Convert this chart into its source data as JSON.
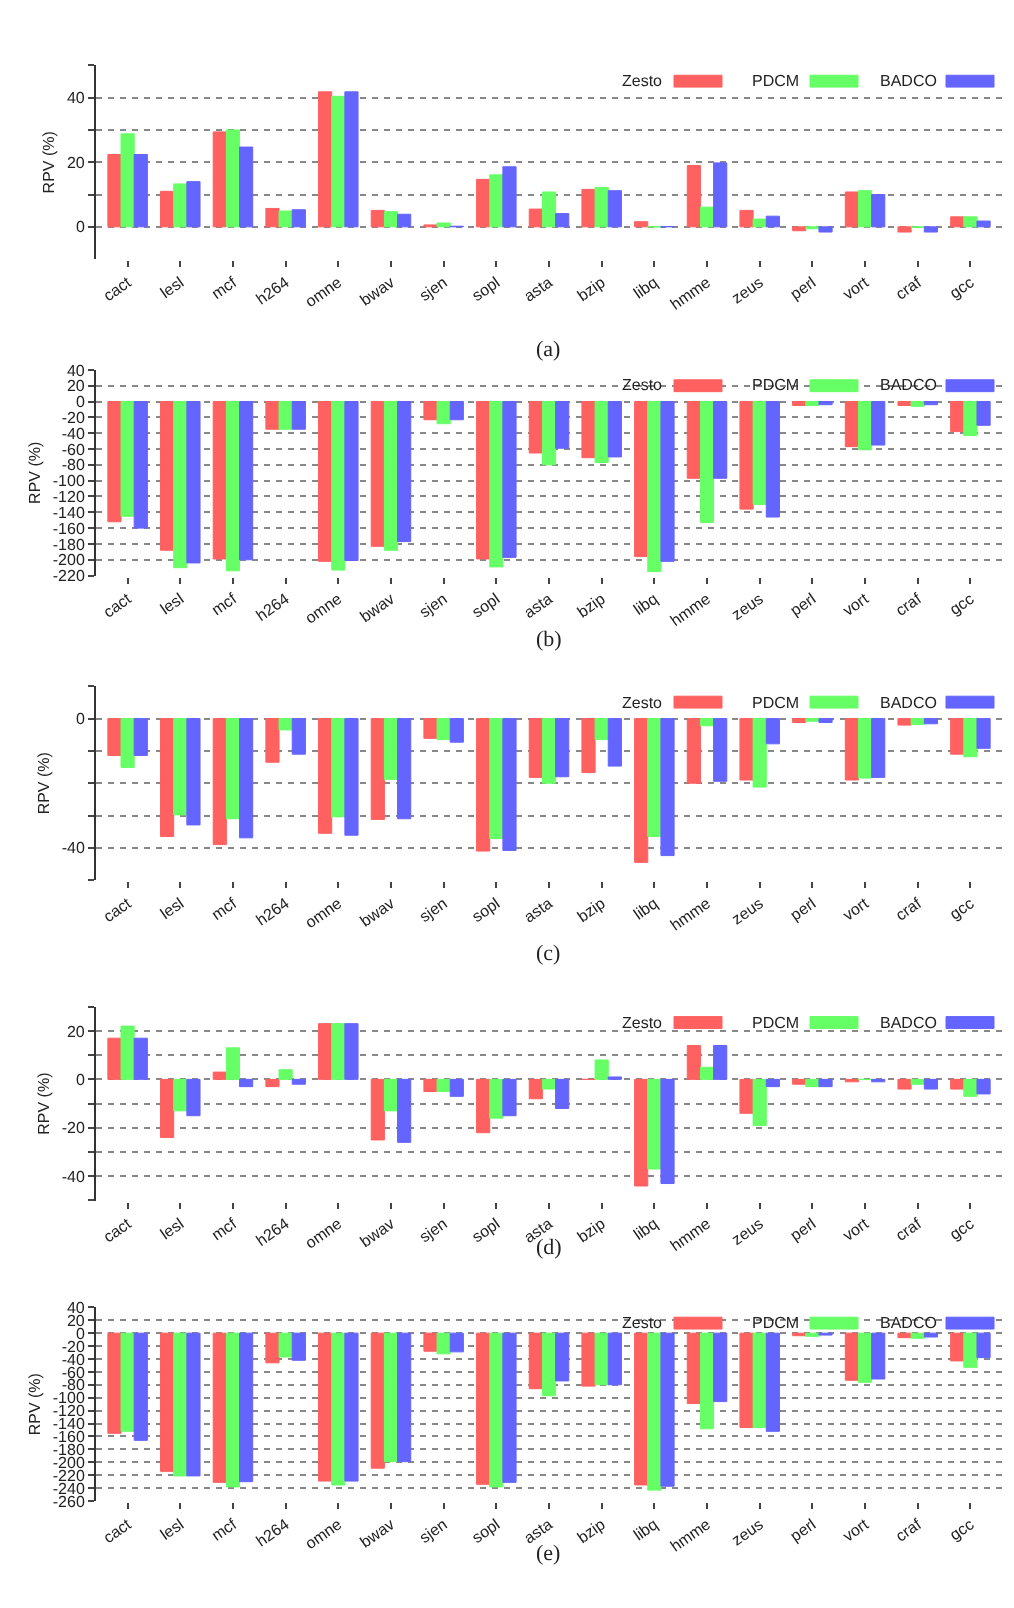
{
  "chart_data": [
    {
      "type": "bar",
      "ylabel": "RPV (%)",
      "categories": [
        "cact",
        "lesl",
        "mcf",
        "h264",
        "omne",
        "bwav",
        "sjen",
        "sopl",
        "asta",
        "bzip",
        "libq",
        "hmme",
        "zeus",
        "perl",
        "vort",
        "craf",
        "gcc"
      ],
      "series": [
        {
          "name": "Zesto",
          "color": "#ff6060",
          "values": [
            22.4,
            11,
            29.4,
            5.7,
            41.8,
            5.1,
            0.6,
            14.7,
            5.5,
            11.6,
            1.6,
            19,
            5.1,
            -1.2,
            10.8,
            -1.6,
            3.1
          ]
        },
        {
          "name": "PDCM",
          "color": "#66ff66",
          "values": [
            28.8,
            13.3,
            30,
            4.9,
            40.4,
            4.7,
            1.2,
            16.1,
            10.8,
            12.2,
            0,
            6.1,
            2.4,
            -0.6,
            11.2,
            -0.2,
            3.1
          ]
        },
        {
          "name": "BADCO",
          "color": "#6464ff",
          "values": [
            22.4,
            14,
            24.7,
            5.3,
            41.8,
            3.9,
            0.2,
            18.6,
            4.1,
            11.2,
            0.1,
            19.8,
            3.3,
            -1.6,
            10,
            -1.6,
            1.8
          ]
        }
      ],
      "ylim": [
        -10,
        50
      ],
      "yticks": [
        0,
        {
          "value": 10,
          "label": null
        },
        20,
        {
          "value": 30,
          "label": null
        },
        40,
        {
          "value": 50,
          "label": null
        }
      ],
      "grid": "y",
      "legend": "top right",
      "annotations": [
        "(a)"
      ]
    },
    {
      "type": "bar",
      "ylabel": "RPV (%)",
      "categories": [
        "cact",
        "lesl",
        "mcf",
        "h264",
        "omne",
        "bwav",
        "sjen",
        "sopl",
        "asta",
        "bzip",
        "libq",
        "hmme",
        "zeus",
        "perl",
        "vort",
        "craf",
        "gcc"
      ],
      "series": [
        {
          "name": "Zesto",
          "color": "#ff6060",
          "values": [
            -152,
            -188,
            -199,
            -35,
            -202,
            -183,
            -23,
            -199,
            -65,
            -71,
            -196,
            -97,
            -136,
            -5,
            -57,
            -5,
            -38
          ]
        },
        {
          "name": "PDCM",
          "color": "#66ff66",
          "values": [
            -145,
            -210,
            -214,
            -35,
            -213,
            -188,
            -28,
            -209,
            -80,
            -77,
            -215,
            -153,
            -130,
            -5,
            -61,
            -6,
            -43
          ]
        },
        {
          "name": "BADCO",
          "color": "#6464ff",
          "values": [
            -160,
            -204,
            -200,
            -35,
            -201,
            -177,
            -23,
            -197,
            -59,
            -70,
            -202,
            -97,
            -146,
            -4,
            -55,
            -4,
            -30
          ]
        }
      ],
      "ylim": [
        -220,
        40
      ],
      "yticks": [
        -220,
        -200,
        -180,
        -160,
        -140,
        -120,
        -100,
        -80,
        -60,
        -40,
        -20,
        0,
        20,
        40
      ],
      "grid": "y",
      "legend": "top right",
      "annotations": [
        "(b)"
      ]
    },
    {
      "type": "bar",
      "ylabel": "RPV (%)",
      "categories": [
        "cact",
        "lesl",
        "mcf",
        "h264",
        "omne",
        "bwav",
        "sjen",
        "sopl",
        "asta",
        "bzip",
        "libq",
        "hmme",
        "zeus",
        "perl",
        "vort",
        "craf",
        "gcc"
      ],
      "series": [
        {
          "name": "Zesto",
          "color": "#ff6060",
          "values": [
            -11.4,
            -36.5,
            -39,
            -13.5,
            -35.5,
            -31.2,
            -6.1,
            -41,
            -18.2,
            -16.7,
            -44.5,
            -20,
            -19,
            -1.2,
            -19,
            -2,
            -11
          ]
        },
        {
          "name": "PDCM",
          "color": "#66ff66",
          "values": [
            -15.1,
            -29.8,
            -31,
            -3.5,
            -30.4,
            -18.8,
            -6.5,
            -37.1,
            -20,
            -6.5,
            -36.5,
            -2.2,
            -21.2,
            -0.8,
            -18.4,
            -1.8,
            -11.8
          ]
        },
        {
          "name": "BADCO",
          "color": "#6464ff",
          "values": [
            -11.4,
            -32.9,
            -36.9,
            -11,
            -36.1,
            -31,
            -7.3,
            -40.8,
            -18,
            -14.7,
            -42.4,
            -19.4,
            -7.8,
            -1.2,
            -18.2,
            -1.6,
            -9.2
          ]
        }
      ],
      "ylim": [
        -50,
        10
      ],
      "yticks": [
        {
          "value": -50,
          "label": null
        },
        -40,
        {
          "value": -30,
          "label": null
        },
        {
          "value": -20,
          "label": null
        },
        {
          "value": -10,
          "label": null
        },
        0,
        {
          "value": 10,
          "label": null
        }
      ],
      "grid": "y",
      "legend": "top right",
      "annotations": [
        "(c)"
      ]
    },
    {
      "type": "bar",
      "ylabel": "RPV (%)",
      "categories": [
        "cact",
        "lesl",
        "mcf",
        "h264",
        "omne",
        "bwav",
        "sjen",
        "sopl",
        "asta",
        "bzip",
        "libq",
        "hmme",
        "zeus",
        "perl",
        "vort",
        "craf",
        "gcc"
      ],
      "series": [
        {
          "name": "Zesto",
          "color": "#ff6060",
          "values": [
            17,
            -24,
            3,
            -3,
            23,
            -25,
            -5,
            -22,
            -8,
            0,
            -44,
            14,
            -14,
            -2,
            -1,
            -4,
            -4
          ]
        },
        {
          "name": "PDCM",
          "color": "#66ff66",
          "values": [
            22,
            -13,
            13,
            4,
            23,
            -13,
            -5,
            -16,
            -4,
            8,
            -37,
            5,
            -19,
            -3,
            0,
            -2,
            -7
          ]
        },
        {
          "name": "BADCO",
          "color": "#6464ff",
          "values": [
            17,
            -15,
            -3,
            -2,
            23,
            -26,
            -7,
            -15,
            -12,
            1,
            -43,
            14,
            -3,
            -3,
            -1,
            -4,
            -6
          ]
        }
      ],
      "ylim": [
        -50,
        30
      ],
      "yticks": [
        {
          "value": -50,
          "label": null
        },
        -40,
        {
          "value": -30,
          "label": null
        },
        -20,
        {
          "value": -10,
          "label": null
        },
        0,
        {
          "value": 10,
          "label": null
        },
        20,
        {
          "value": 30,
          "label": null
        }
      ],
      "grid": "y",
      "legend": "top right",
      "annotations": [
        "(d)"
      ]
    },
    {
      "type": "bar",
      "ylabel": "RPV (%)",
      "categories": [
        "cact",
        "lesl",
        "mcf",
        "h264",
        "omne",
        "bwav",
        "sjen",
        "sopl",
        "asta",
        "bzip",
        "libq",
        "hmme",
        "zeus",
        "perl",
        "vort",
        "craf",
        "gcc"
      ],
      "series": [
        {
          "name": "Zesto",
          "color": "#ff6060",
          "values": [
            -155,
            -214,
            -231,
            -46,
            -229,
            -209,
            -28,
            -234,
            -86,
            -82,
            -235,
            -109,
            -146,
            -4,
            -73,
            -7,
            -43
          ]
        },
        {
          "name": "PDCM",
          "color": "#66ff66",
          "values": [
            -152,
            -221,
            -238,
            -37,
            -235,
            -199,
            -32,
            -238,
            -97,
            -80,
            -243,
            -148,
            -146,
            -5,
            -76,
            -8,
            -53
          ]
        },
        {
          "name": "BADCO",
          "color": "#6464ff",
          "values": [
            -166,
            -221,
            -230,
            -42,
            -229,
            -199,
            -29,
            -231,
            -74,
            -80,
            -237,
            -106,
            -152,
            -3,
            -71,
            -6,
            -38
          ]
        }
      ],
      "ylim": [
        -260,
        40
      ],
      "yticks": [
        -260,
        -240,
        -220,
        -200,
        -180,
        -160,
        -140,
        -120,
        -100,
        -80,
        -60,
        -40,
        -20,
        0,
        20,
        40
      ],
      "grid": "y",
      "legend": "top right",
      "annotations": [
        "(e)"
      ]
    }
  ]
}
